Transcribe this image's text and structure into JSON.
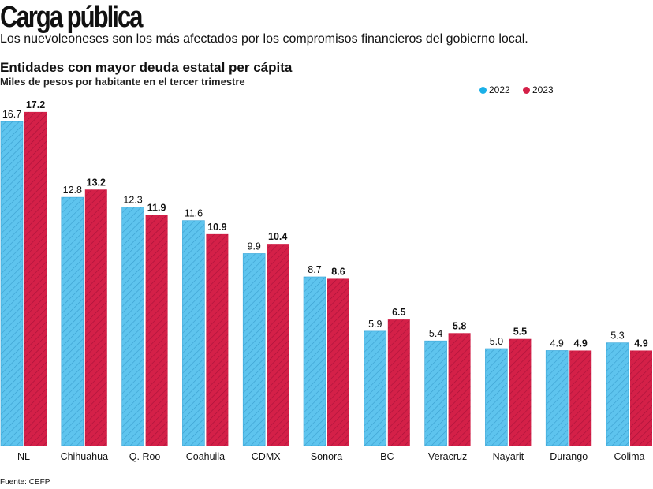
{
  "header": {
    "title": "Carga pública",
    "subtitle": "Los nuevoleoneses son los más afectados por los compromisos financieros del gobierno local."
  },
  "footer": {
    "source": "Fuente: CEFP."
  },
  "chart_data": {
    "type": "bar",
    "title": "Entidades con mayor deuda estatal per cápita",
    "subtitle": "Miles de pesos por habitante en el tercer trimestre",
    "categories": [
      "NL",
      "Chihuahua",
      "Q. Roo",
      "Coahuila",
      "CDMX",
      "Sonora",
      "BC",
      "Veracruz",
      "Nayarit",
      "Durango",
      "Colima"
    ],
    "series": [
      {
        "name": "2022",
        "color": "#5ec4ee",
        "values": [
          16.7,
          12.8,
          12.3,
          11.6,
          9.9,
          8.7,
          5.9,
          5.4,
          5.0,
          4.9,
          5.3
        ],
        "labels": [
          "16.7",
          "12.8",
          "12.3",
          "11.6",
          "9.9",
          "8.7",
          "5.9",
          "5.4",
          "5.0",
          "4.9",
          "5.3"
        ]
      },
      {
        "name": "2023",
        "color": "#d42048",
        "values": [
          17.2,
          13.2,
          11.9,
          10.9,
          10.4,
          8.6,
          6.5,
          5.8,
          5.5,
          4.9,
          4.9
        ],
        "labels": [
          "17.2",
          "13.2",
          "11.9",
          "10.9",
          "10.4",
          "8.6",
          "6.5",
          "5.8",
          "5.5",
          "4.9",
          "4.9"
        ]
      }
    ],
    "ylim": [
      0,
      17.2
    ],
    "grid": false,
    "legend": "top-right",
    "data_labels": true
  }
}
